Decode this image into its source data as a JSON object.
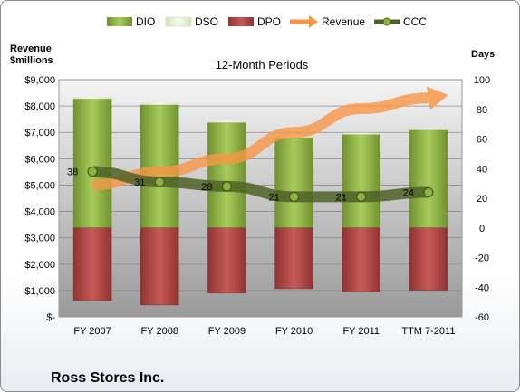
{
  "chart_data": {
    "type": "bar",
    "title": "12-Month Periods",
    "footer": "Ross Stores Inc.",
    "categories": [
      "FY 2007",
      "FY 2008",
      "FY 2009",
      "FY 2010",
      "FY 2011",
      "TTM 7-2011"
    ],
    "left_axis": {
      "label_line1": "Revenue",
      "label_line2": "$millions",
      "ylim": [
        0,
        9000
      ],
      "ticks": [
        0,
        1000,
        2000,
        3000,
        4000,
        5000,
        6000,
        7000,
        8000,
        9000
      ],
      "tick_labels": [
        "$-",
        "$1,000",
        "$2,000",
        "$3,000",
        "$4,000",
        "$5,000",
        "$6,000",
        "$7,000",
        "$8,000",
        "$9,000"
      ]
    },
    "right_axis": {
      "label": "Days",
      "ylim": [
        -60,
        100
      ],
      "ticks": [
        -60,
        -40,
        -20,
        0,
        20,
        40,
        60,
        80,
        100
      ],
      "tick_labels": [
        "-60",
        "-40",
        "-20",
        "0",
        "20",
        "40",
        "60",
        "80",
        "100"
      ]
    },
    "series": [
      {
        "name": "DIO",
        "color": "#8cb33d",
        "values": [
          87,
          83,
          71,
          61,
          63,
          66
        ]
      },
      {
        "name": "DSO",
        "color": "#ebf1de",
        "values": [
          0,
          0,
          0,
          0,
          0,
          0
        ]
      },
      {
        "name": "DPO",
        "color": "#b94a48",
        "values": [
          -49,
          -52,
          -44,
          -41,
          -43,
          -42
        ]
      },
      {
        "name": "Revenue",
        "color": "#f79646",
        "values": [
          5000,
          5500,
          6000,
          7000,
          7900,
          8300
        ]
      },
      {
        "name": "CCC",
        "color": "#4f6228",
        "values": [
          38,
          31,
          28,
          21,
          21,
          24
        ],
        "labels": [
          "38",
          "31",
          "28",
          "21",
          "21",
          "24"
        ]
      }
    ],
    "grid": true,
    "legend_position": "top"
  }
}
